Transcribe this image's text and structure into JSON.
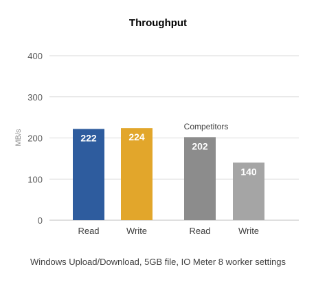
{
  "chart_data": {
    "type": "bar",
    "title": "Throughput",
    "ylabel": "MB/s",
    "xlabel": "",
    "ylim": [
      0,
      400
    ],
    "yticks": [
      0,
      100,
      200,
      300,
      400
    ],
    "grid": true,
    "legend": "none",
    "categories": [
      "Read",
      "Write",
      "Read",
      "Write"
    ],
    "values": [
      222,
      224,
      202,
      140
    ],
    "bar_colors": [
      "#2e5c9e",
      "#e2a62b",
      "#8c8c8c",
      "#a5a5a5"
    ],
    "annotation": "Competitors",
    "caption": "Windows Upload/Download, 5GB file, IO Meter 8 worker settings"
  }
}
